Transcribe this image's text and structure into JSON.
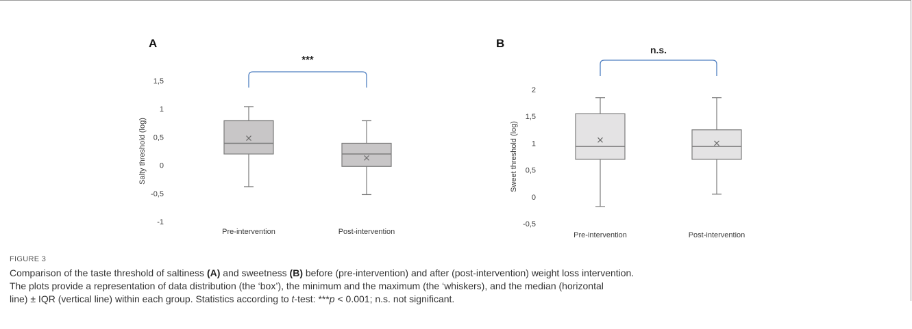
{
  "figure": {
    "label": "FIGURE 3",
    "caption": {
      "part1": "Comparison of the taste threshold of saltiness ",
      "bold_a": "(A)",
      "part2": " and sweetness ",
      "bold_b": "(B)",
      "part3": " before (pre-intervention) and after (post-intervention) weight loss intervention.",
      "line2": "The plots provide a representation of data distribution (the ‘box’), the minimum and the maximum (the ‘whiskers), and the median (horizontal",
      "line3_pre": "line) ",
      "pm": "±",
      "line3_post": " IQR (vertical line) within each group. Statistics according to ",
      "t_letter": "t",
      "line3_end": "-test: ***",
      "p_letter": "p",
      "line3_tail": " < 0.001; n.s. not significant."
    }
  },
  "colors": {
    "panel_a_box": "#c8c6c7",
    "panel_b_box": "#e4e3e4",
    "box_stroke": "#7a7a7a",
    "bracket": "#4f7fc1",
    "axis_text": "#3a3a3a"
  },
  "chart_data": [
    {
      "panel": "A",
      "type": "box",
      "ylabel": "Salty threshold (log)",
      "ylim": [
        -1,
        1.5
      ],
      "yticks": [
        1.5,
        1,
        0.5,
        0,
        -0.5,
        -1
      ],
      "ytick_labels": [
        "1,5",
        "1",
        "0,5",
        "0",
        "-0,5",
        "-1"
      ],
      "categories": [
        "Pre-intervention",
        "Post-intervention"
      ],
      "boxes": [
        {
          "min": -0.38,
          "q1": 0.2,
          "median": 0.39,
          "q3": 0.79,
          "max": 1.04,
          "mean": 0.48
        },
        {
          "min": -0.52,
          "q1": -0.02,
          "median": 0.2,
          "q3": 0.39,
          "max": 0.79,
          "mean": 0.13
        }
      ],
      "significance": "***"
    },
    {
      "panel": "B",
      "type": "box",
      "ylabel": "Sweet threshold (log)",
      "ylim": [
        -0.5,
        2
      ],
      "yticks": [
        2,
        1.5,
        1,
        0.5,
        0,
        -0.5
      ],
      "ytick_labels": [
        "2",
        "1,5",
        "1",
        "0,5",
        "0",
        "-0,5"
      ],
      "categories": [
        "Pre-intervention",
        "Post-intervention"
      ],
      "boxes": [
        {
          "min": -0.18,
          "q1": 0.7,
          "median": 0.94,
          "q3": 1.55,
          "max": 1.85,
          "mean": 1.06
        },
        {
          "min": 0.05,
          "q1": 0.7,
          "median": 0.94,
          "q3": 1.25,
          "max": 1.85,
          "mean": 1.0
        }
      ],
      "significance": "n.s."
    }
  ]
}
